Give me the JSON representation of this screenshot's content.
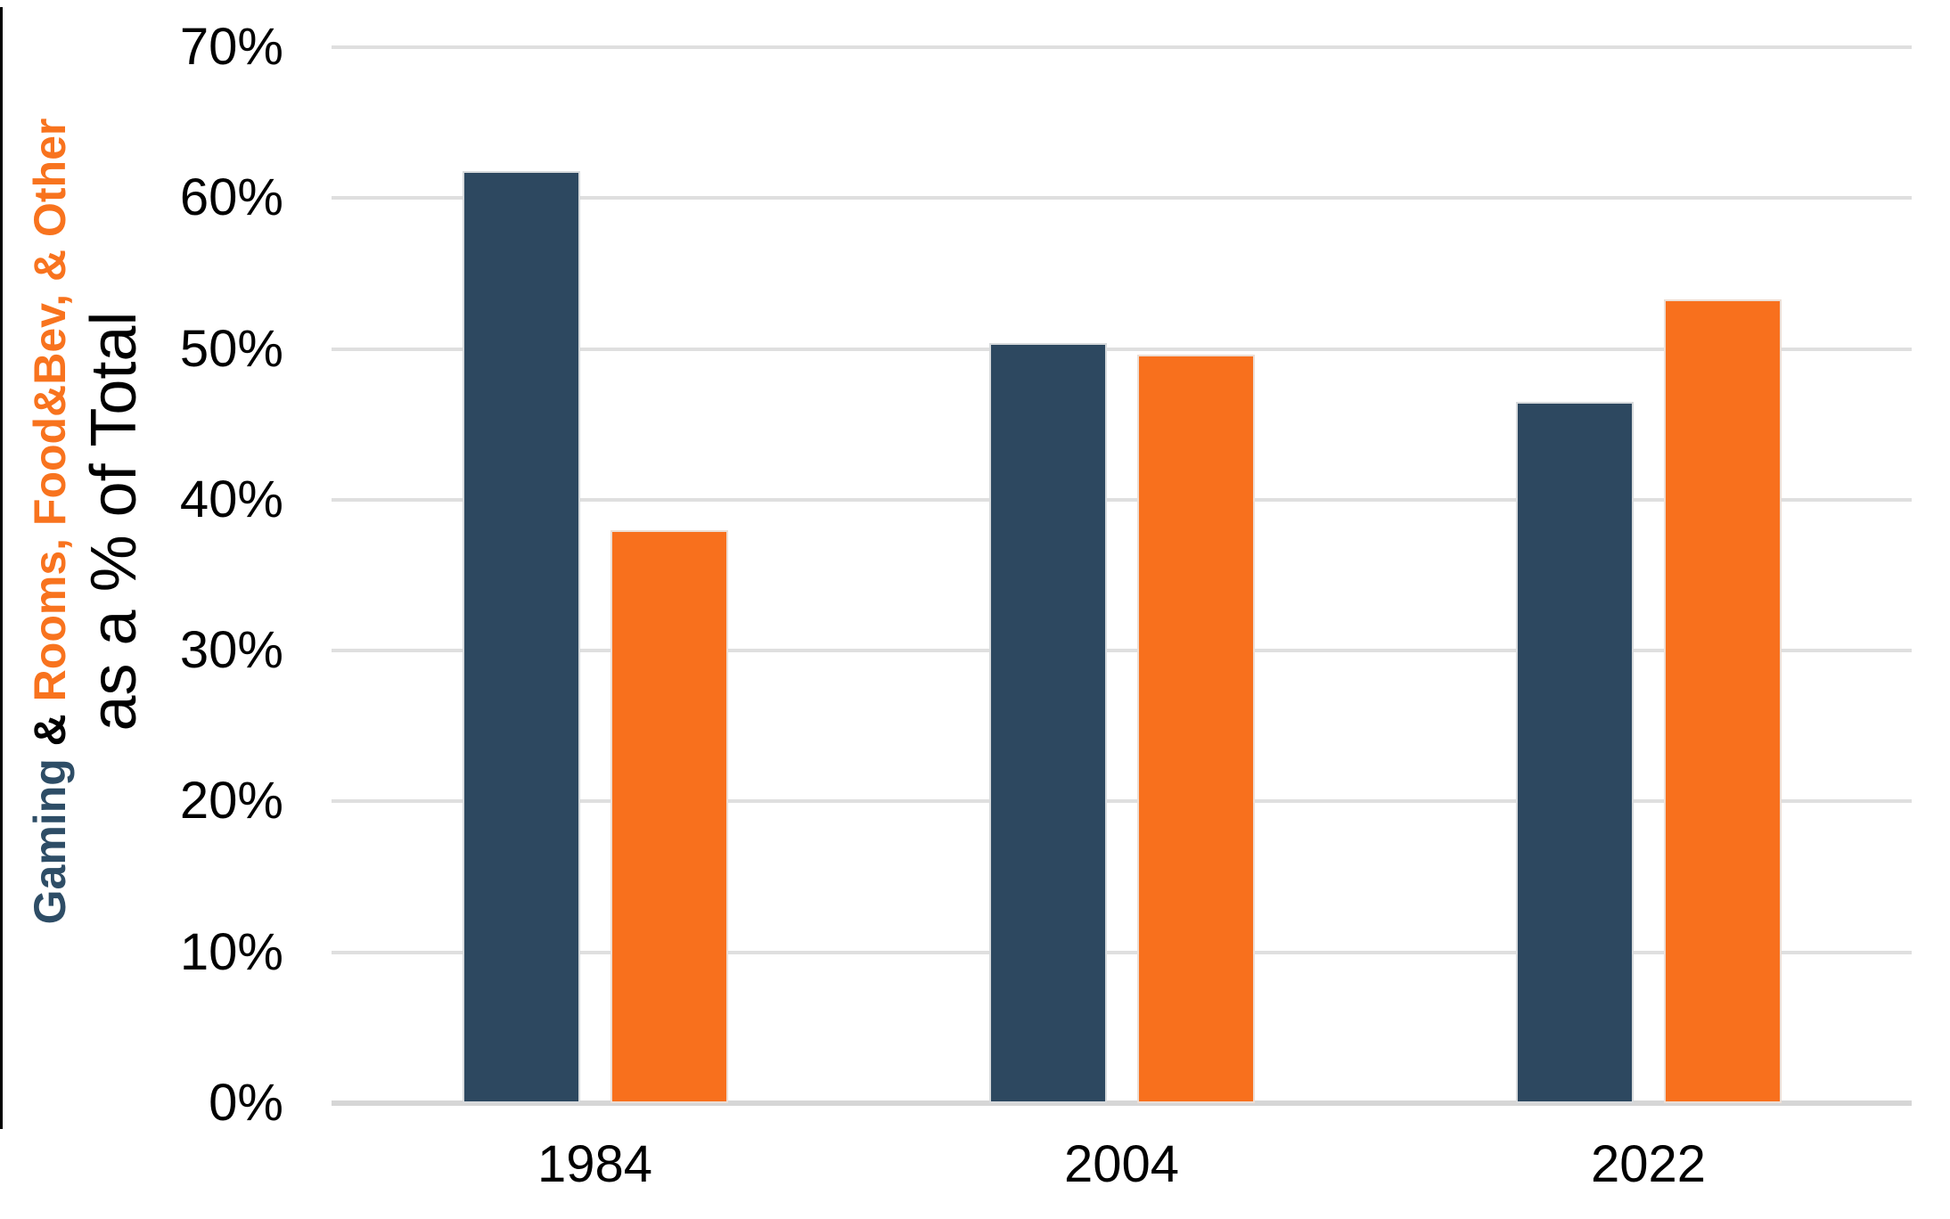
{
  "chart_data": {
    "type": "bar",
    "categories": [
      "1984",
      "2004",
      "2022"
    ],
    "series": [
      {
        "name": "Gaming",
        "color": "#2D4860",
        "values": [
          61.8,
          50.4,
          46.5
        ]
      },
      {
        "name": "Rooms, Food&Bev, & Other",
        "color": "#F8701D",
        "values": [
          38.0,
          49.6,
          53.3
        ]
      }
    ],
    "title": "",
    "xlabel": "",
    "ylabel": "Gaming & Rooms, Food&Bev, & Other as a % of Total",
    "ylim": [
      0,
      70
    ],
    "grid": true,
    "legend_position": "none",
    "y_ticks": [
      {
        "label": "70%",
        "value": 70
      },
      {
        "label": "60%",
        "value": 60
      },
      {
        "label": "50%",
        "value": 50
      },
      {
        "label": "40%",
        "value": 40
      },
      {
        "label": "30%",
        "value": 30
      },
      {
        "label": "20%",
        "value": 20
      },
      {
        "label": "10%",
        "value": 10
      },
      {
        "label": "0%",
        "value": 0
      }
    ]
  },
  "y_axis_title": {
    "line1_parts": [
      {
        "text": "Gaming",
        "color": "#2E4D66"
      },
      {
        "text": " & ",
        "color": "#000000"
      },
      {
        "text": "Rooms, Food&Bev, & Other",
        "color": "#F8731E"
      }
    ],
    "line2": "as a % of Total"
  },
  "colors": {
    "gaming_bar": "#2D4860",
    "other_bar": "#F8701D",
    "gridline": "#DFDFDF",
    "baseline": "#D6D6D6",
    "axis_text": "#000000",
    "background": "#FFFFFF"
  }
}
